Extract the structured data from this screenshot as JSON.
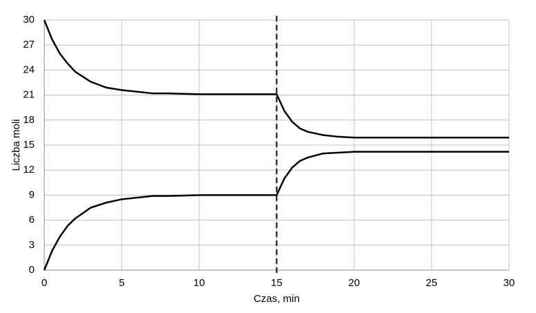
{
  "chart_data": {
    "type": "line",
    "xlabel": "Czas, min",
    "ylabel": "Liczba moli",
    "x": [
      0,
      0.5,
      1,
      1.5,
      2,
      3,
      4,
      5,
      6,
      7,
      8,
      10,
      12,
      15,
      15.5,
      16,
      16.5,
      17,
      18,
      19,
      20,
      25,
      30
    ],
    "series": [
      {
        "color": "#000000",
        "values": [
          30,
          27.7,
          26.0,
          24.8,
          23.8,
          22.6,
          21.9,
          21.6,
          21.4,
          21.2,
          21.2,
          21.1,
          21.1,
          21.1,
          19.1,
          17.8,
          17.0,
          16.6,
          16.2,
          16.0,
          15.9,
          15.9,
          15.9
        ]
      },
      {
        "color": "#000000",
        "values": [
          0,
          2.3,
          4.0,
          5.3,
          6.2,
          7.5,
          8.1,
          8.5,
          8.7,
          8.9,
          8.9,
          9.0,
          9.0,
          9.0,
          11.0,
          12.3,
          13.1,
          13.5,
          14.0,
          14.1,
          14.2,
          14.2,
          14.2
        ]
      }
    ],
    "vline": 15,
    "xlim": [
      0,
      30
    ],
    "xticks": [
      0,
      5,
      10,
      15,
      20,
      25,
      30
    ],
    "ylim": [
      0,
      30
    ],
    "yticks": [
      0,
      3,
      6,
      9,
      12,
      15,
      18,
      21,
      24,
      27,
      30
    ],
    "grid": true
  }
}
